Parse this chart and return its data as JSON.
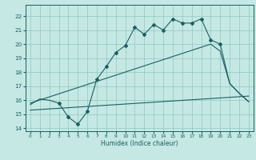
{
  "xlabel": "Humidex (Indice chaleur)",
  "xlim": [
    -0.5,
    23.5
  ],
  "ylim": [
    13.8,
    22.8
  ],
  "yticks": [
    14,
    15,
    16,
    17,
    18,
    19,
    20,
    21,
    22
  ],
  "xticks": [
    0,
    1,
    2,
    3,
    4,
    5,
    6,
    7,
    8,
    9,
    10,
    11,
    12,
    13,
    14,
    15,
    16,
    17,
    18,
    19,
    20,
    21,
    22,
    23
  ],
  "bg_color": "#c5e8e4",
  "grid_color": "#8fc8c0",
  "line_color": "#1a6060",
  "line1_x": [
    0,
    1,
    2,
    3,
    4,
    5,
    6,
    7,
    8,
    9,
    10,
    11,
    12,
    13,
    14,
    15,
    16,
    17,
    18,
    19,
    20,
    21,
    22,
    23
  ],
  "line1_y": [
    15.7,
    16.1,
    16.0,
    15.8,
    14.8,
    14.3,
    15.2,
    17.5,
    18.4,
    19.4,
    19.9,
    21.2,
    20.7,
    21.4,
    21.0,
    21.8,
    21.5,
    21.5,
    21.8,
    20.3,
    20.0,
    17.2,
    16.5,
    15.9
  ],
  "line2_x": [
    0,
    19,
    20,
    21,
    22,
    23
  ],
  "line2_y": [
    15.8,
    20.0,
    19.5,
    17.2,
    16.5,
    15.9
  ],
  "line3_x": [
    0,
    23
  ],
  "line3_y": [
    15.3,
    16.3
  ],
  "marker_indices": [
    0,
    1,
    2,
    3,
    4,
    5,
    6,
    7,
    8,
    9,
    10,
    11,
    12,
    13,
    14,
    15,
    16,
    17,
    18,
    19,
    20,
    21,
    22,
    23
  ]
}
